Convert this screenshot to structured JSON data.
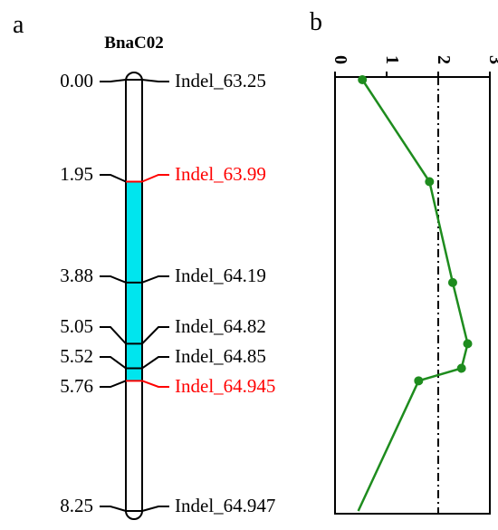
{
  "panels": {
    "a_label": "a",
    "b_label": "b"
  },
  "linkage_map": {
    "chromosome": "BnaC02",
    "markers": [
      {
        "pos_label": "0.00",
        "pos": 0.0,
        "name": "Indel_63.25",
        "highlight": false
      },
      {
        "pos_label": "1.95",
        "pos": 1.95,
        "name": "Indel_63.99",
        "highlight": true
      },
      {
        "pos_label": "3.88",
        "pos": 3.88,
        "name": "Indel_64.19",
        "highlight": false
      },
      {
        "pos_label": "5.05",
        "pos": 5.05,
        "name": "Indel_64.82",
        "highlight": false
      },
      {
        "pos_label": "5.52",
        "pos": 5.52,
        "name": "Indel_64.85",
        "highlight": false
      },
      {
        "pos_label": "5.76",
        "pos": 5.76,
        "name": "Indel_64.945",
        "highlight": true
      },
      {
        "pos_label": "8.25",
        "pos": 8.25,
        "name": "Indel_64.947",
        "highlight": false
      }
    ],
    "qtl_interval": {
      "start": 1.95,
      "end": 5.76
    },
    "colors": {
      "qtl_fill": "#00e5ee",
      "highlight_text": "#ff0000",
      "normal_text": "#000000"
    }
  },
  "chart_data": {
    "type": "line",
    "title": "",
    "xlabel": "",
    "ylabel": "",
    "xlim": [
      0,
      3
    ],
    "x_ticks": [
      "0",
      "1",
      "2",
      "3"
    ],
    "ylim": [
      0.0,
      8.25
    ],
    "y_inverted": true,
    "threshold": 2.0,
    "series": [
      {
        "color": "#1e8c1e",
        "points": [
          {
            "x": 0.53,
            "y": 0.0
          },
          {
            "x": 1.83,
            "y": 1.95
          },
          {
            "x": 2.28,
            "y": 3.88
          },
          {
            "x": 2.57,
            "y": 5.05
          },
          {
            "x": 2.45,
            "y": 5.52
          },
          {
            "x": 1.62,
            "y": 5.76
          },
          {
            "x": 0.45,
            "y": 8.25
          }
        ]
      }
    ]
  }
}
